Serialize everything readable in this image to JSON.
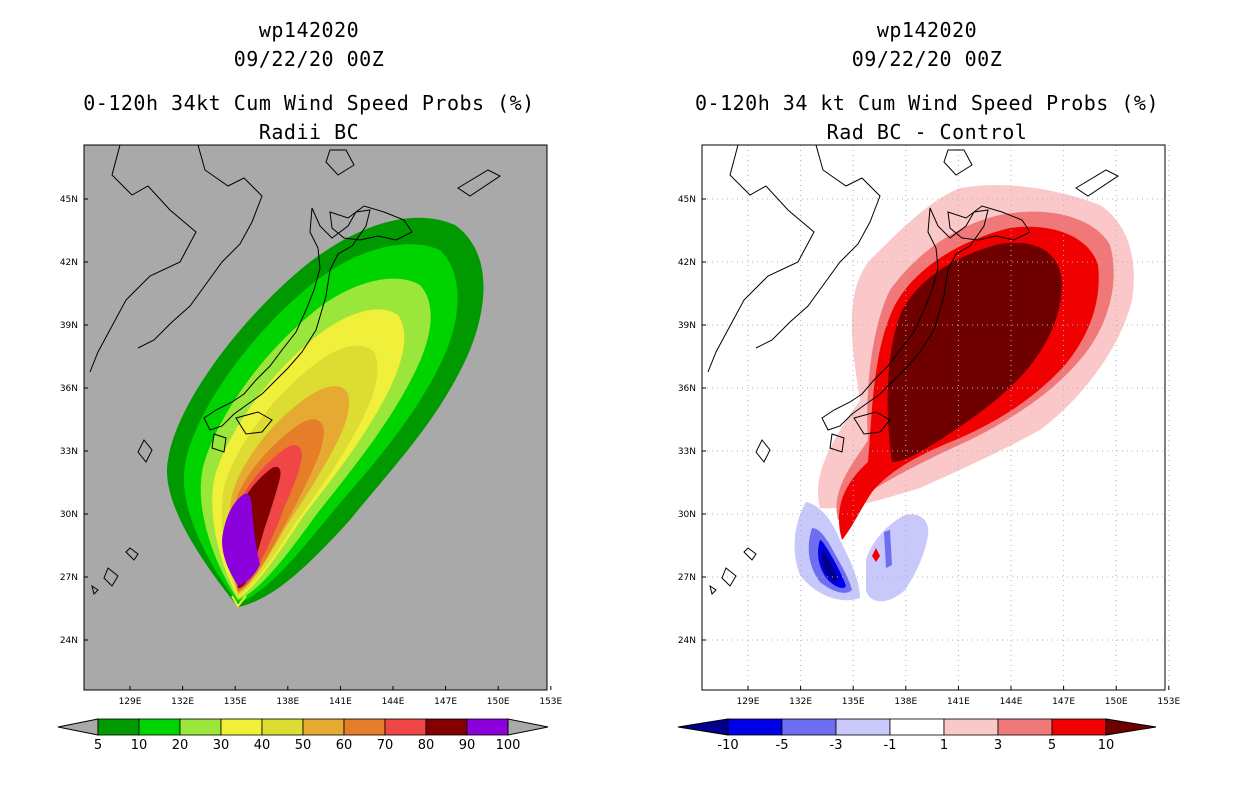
{
  "panels": [
    {
      "storm_id": "wp142020",
      "datetime": "09/22/20 00Z",
      "title": "0-120h 34kt Cum Wind Speed Probs (%)",
      "subtitle": "Radii BC",
      "background": "#a9a9a9",
      "lat_labels": [
        "45N",
        "42N",
        "39N",
        "36N",
        "33N",
        "30N",
        "27N",
        "24N"
      ],
      "lon_labels": [
        "129E",
        "132E",
        "135E",
        "138E",
        "141E",
        "144E",
        "147E",
        "150E",
        "153E"
      ],
      "colorbar_labels": [
        "5",
        "10",
        "20",
        "30",
        "40",
        "50",
        "60",
        "70",
        "80",
        "90",
        "100"
      ],
      "colorbar_colors": [
        "#009a00",
        "#00d400",
        "#9ae63a",
        "#f0f03a",
        "#dcdc32",
        "#e6aa32",
        "#e67d28",
        "#f04646",
        "#820000",
        "#8c00dc"
      ]
    },
    {
      "storm_id": "wp142020",
      "datetime": "09/22/20 00Z",
      "title": "0-120h 34 kt Cum Wind Speed Probs (%)",
      "subtitle": "Rad BC - Control",
      "background": "#ffffff",
      "lat_labels": [
        "45N",
        "42N",
        "39N",
        "36N",
        "33N",
        "30N",
        "27N",
        "24N"
      ],
      "lon_labels": [
        "129E",
        "132E",
        "135E",
        "138E",
        "141E",
        "144E",
        "147E",
        "150E",
        "153E"
      ],
      "colorbar_labels": [
        "-10",
        "-5",
        "-3",
        "-1",
        "1",
        "3",
        "5",
        "10"
      ],
      "colorbar_colors": [
        "#00008c",
        "#0000e6",
        "#6e6ef0",
        "#c8c8fa",
        "#ffffff",
        "#fac8c8",
        "#f07878",
        "#f00000",
        "#6e0000"
      ]
    }
  ]
}
